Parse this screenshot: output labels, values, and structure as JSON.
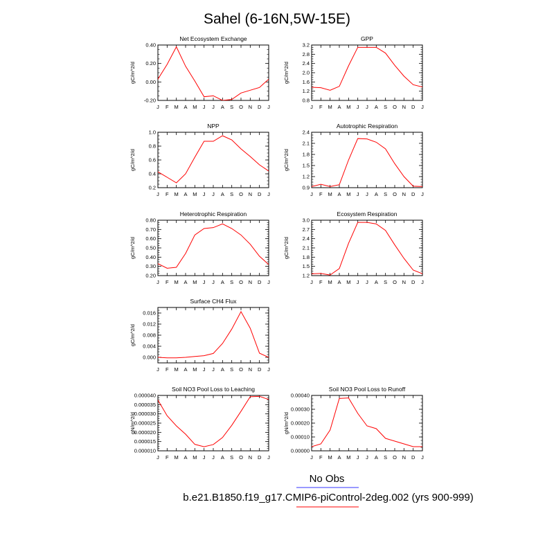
{
  "title": "Sahel (6-16N,5W-15E)",
  "legend": {
    "entries": [
      {
        "label": "No Obs",
        "color": "#3333ff"
      },
      {
        "label": "b.e21.B1850.f19_g17.CMIP6-piControl-2deg.002 (yrs 900-999)",
        "color": "#ff0000"
      }
    ]
  },
  "chart_data": [
    {
      "type": "line",
      "title": "Net Ecosystem Exchange",
      "ylabel": "gC/m^2/d",
      "categories": [
        "J",
        "F",
        "M",
        "A",
        "M",
        "J",
        "J",
        "A",
        "S",
        "O",
        "N",
        "D",
        "J"
      ],
      "ylim": [
        -0.2,
        0.4
      ],
      "yticks": [
        "-0.20",
        "0.00",
        "0.20",
        "0.40"
      ],
      "ytick_values": [
        -0.2,
        0.0,
        0.2,
        0.4
      ],
      "series": [
        {
          "values": [
            0.03,
            0.19,
            0.38,
            0.17,
            0.01,
            -0.16,
            -0.15,
            -0.2,
            -0.19,
            -0.12,
            -0.09,
            -0.06,
            0.03
          ],
          "color": "#ff0000"
        }
      ]
    },
    {
      "type": "line",
      "title": "GPP",
      "ylabel": "gC/m^2/d",
      "categories": [
        "J",
        "F",
        "M",
        "A",
        "M",
        "J",
        "J",
        "A",
        "S",
        "O",
        "N",
        "D",
        "J"
      ],
      "ylim": [
        0.8,
        3.2
      ],
      "yticks": [
        "0.8",
        "1.2",
        "1.6",
        "2.0",
        "2.4",
        "2.8",
        "3.2"
      ],
      "ytick_values": [
        0.8,
        1.2,
        1.6,
        2.0,
        2.4,
        2.8,
        3.2
      ],
      "series": [
        {
          "values": [
            1.37,
            1.35,
            1.24,
            1.41,
            2.3,
            3.1,
            3.1,
            3.1,
            2.85,
            2.32,
            1.85,
            1.48,
            1.38
          ],
          "color": "#ff0000"
        }
      ]
    },
    {
      "type": "line",
      "title": "NPP",
      "ylabel": "gC/m^2/d",
      "categories": [
        "J",
        "F",
        "M",
        "A",
        "M",
        "J",
        "J",
        "A",
        "S",
        "O",
        "N",
        "D",
        "J"
      ],
      "ylim": [
        0.2,
        1.0
      ],
      "yticks": [
        "0.2",
        "0.4",
        "0.6",
        "0.8",
        "1.0"
      ],
      "ytick_values": [
        0.2,
        0.4,
        0.6,
        0.8,
        1.0
      ],
      "series": [
        {
          "values": [
            0.43,
            0.35,
            0.27,
            0.4,
            0.64,
            0.87,
            0.87,
            0.95,
            0.89,
            0.76,
            0.65,
            0.53,
            0.44
          ],
          "color": "#ff0000"
        }
      ]
    },
    {
      "type": "line",
      "title": "Autotrophic Respiration",
      "ylabel": "gC/m^2/d",
      "categories": [
        "J",
        "F",
        "M",
        "A",
        "M",
        "J",
        "J",
        "A",
        "S",
        "O",
        "N",
        "D",
        "J"
      ],
      "ylim": [
        0.9,
        2.4
      ],
      "yticks": [
        "0.9",
        "1.2",
        "1.5",
        "1.8",
        "2.1",
        "2.4"
      ],
      "ytick_values": [
        0.9,
        1.2,
        1.5,
        1.8,
        2.1,
        2.4
      ],
      "series": [
        {
          "values": [
            0.93,
            0.99,
            0.93,
            0.98,
            1.65,
            2.23,
            2.22,
            2.13,
            1.95,
            1.55,
            1.2,
            0.94,
            0.93
          ],
          "color": "#ff0000"
        }
      ]
    },
    {
      "type": "line",
      "title": "Heterotrophic Respiration",
      "ylabel": "gC/m^2/d",
      "categories": [
        "J",
        "F",
        "M",
        "A",
        "M",
        "J",
        "J",
        "A",
        "S",
        "O",
        "N",
        "D",
        "J"
      ],
      "ylim": [
        0.2,
        0.8
      ],
      "yticks": [
        "0.20",
        "0.30",
        "0.40",
        "0.50",
        "0.60",
        "0.70",
        "0.80"
      ],
      "ytick_values": [
        0.2,
        0.3,
        0.4,
        0.5,
        0.6,
        0.7,
        0.8
      ],
      "series": [
        {
          "values": [
            0.33,
            0.28,
            0.29,
            0.44,
            0.64,
            0.71,
            0.72,
            0.76,
            0.71,
            0.64,
            0.54,
            0.41,
            0.32
          ],
          "color": "#ff0000"
        }
      ]
    },
    {
      "type": "line",
      "title": "Ecosystem Respiration",
      "ylabel": "gC/m^2/d",
      "categories": [
        "J",
        "F",
        "M",
        "A",
        "M",
        "J",
        "J",
        "A",
        "S",
        "O",
        "N",
        "D",
        "J"
      ],
      "ylim": [
        1.2,
        3.0
      ],
      "yticks": [
        "1.2",
        "1.5",
        "1.8",
        "2.1",
        "2.4",
        "2.7",
        "3.0"
      ],
      "ytick_values": [
        1.2,
        1.5,
        1.8,
        2.1,
        2.4,
        2.7,
        3.0
      ],
      "series": [
        {
          "values": [
            1.26,
            1.27,
            1.22,
            1.43,
            2.25,
            2.93,
            2.93,
            2.88,
            2.67,
            2.2,
            1.76,
            1.38,
            1.26
          ],
          "color": "#ff0000"
        }
      ]
    },
    {
      "type": "line",
      "title": "Surface CH4 Flux",
      "ylabel": "gC/m^2/d",
      "categories": [
        "J",
        "F",
        "M",
        "A",
        "M",
        "J",
        "J",
        "A",
        "S",
        "O",
        "N",
        "D",
        "J"
      ],
      "ylim": [
        -0.002,
        0.018
      ],
      "yticks": [
        "0.000",
        "0.004",
        "0.008",
        "0.012",
        "0.016"
      ],
      "ytick_values": [
        0.0,
        0.004,
        0.008,
        0.012,
        0.016
      ],
      "series": [
        {
          "values": [
            0.0,
            -0.0002,
            -0.0002,
            0.0,
            0.0003,
            0.0006,
            0.0014,
            0.005,
            0.0102,
            0.0165,
            0.0105,
            0.0015,
            0.0
          ],
          "color": "#ff0000"
        }
      ]
    },
    {
      "type": "line",
      "title": "Soil NO3 Pool Loss to Leaching",
      "ylabel": "gN/m^2/d",
      "categories": [
        "J",
        "F",
        "M",
        "A",
        "M",
        "J",
        "J",
        "A",
        "S",
        "O",
        "N",
        "D",
        "J"
      ],
      "ylim": [
        1e-05,
        4e-05
      ],
      "yticks": [
        "0.000010",
        "0.000015",
        "0.000020",
        "0.000025",
        "0.000030",
        "0.000035",
        "0.000040"
      ],
      "ytick_values": [
        1e-05,
        1.5e-05,
        2e-05,
        2.5e-05,
        3e-05,
        3.5e-05,
        4e-05
      ],
      "series": [
        {
          "values": [
            3.75e-05,
            2.9e-05,
            2.35e-05,
            1.9e-05,
            1.35e-05,
            1.22e-05,
            1.34e-05,
            1.72e-05,
            2.38e-05,
            3.14e-05,
            3.93e-05,
            3.95e-05,
            3.78e-05
          ],
          "color": "#ff0000"
        }
      ]
    },
    {
      "type": "line",
      "title": "Soil NO3 Pool Loss to Runoff",
      "ylabel": "gN/m^2/d",
      "categories": [
        "J",
        "F",
        "M",
        "A",
        "M",
        "J",
        "J",
        "A",
        "S",
        "O",
        "N",
        "D",
        "J"
      ],
      "ylim": [
        0,
        0.0004
      ],
      "yticks": [
        "0.00000",
        "0.00010",
        "0.00020",
        "0.00030",
        "0.00040"
      ],
      "ytick_values": [
        0,
        0.0001,
        0.0002,
        0.0003,
        0.0004
      ],
      "series": [
        {
          "values": [
            3e-05,
            5e-05,
            0.00015,
            0.000378,
            0.000382,
            0.00027,
            0.00018,
            0.00016,
            9e-05,
            7e-05,
            5e-05,
            3e-05,
            3e-05
          ],
          "color": "#ff0000"
        }
      ]
    }
  ]
}
